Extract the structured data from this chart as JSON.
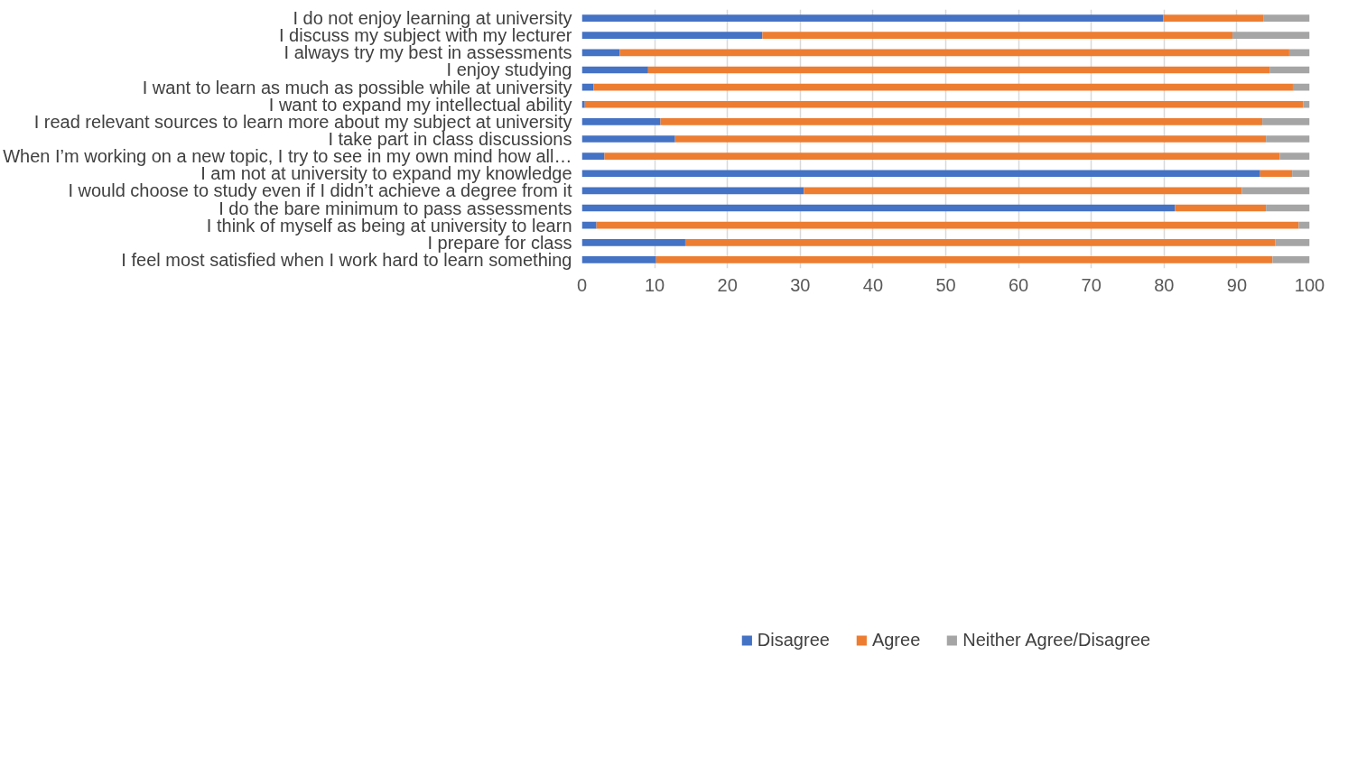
{
  "chart_data": {
    "type": "bar",
    "orientation": "horizontal",
    "stacked": true,
    "categories": [
      "I do not enjoy learning at university",
      "I discuss my subject with my lecturer",
      "I always try my best in assessments",
      "I enjoy studying",
      "I want to learn as much as possible while at university",
      "I want to expand my intellectual ability",
      "I read relevant sources to learn more about my subject at university",
      "I take part in class discussions",
      "When I’m working on a new topic, I try to see in my own mind how all…",
      "I am not at university to expand my knowledge",
      "I would choose to study even if I didn’t achieve a degree from it",
      "I do the bare minimum to pass assessments",
      "I think of myself as being at university to learn",
      "I prepare for class",
      "I feel most satisfied when I work hard to learn something"
    ],
    "series": [
      {
        "name": "Disagree",
        "color": "#4472c4",
        "values": [
          79.9,
          24.8,
          5.2,
          9.1,
          1.6,
          0.4,
          10.8,
          12.8,
          3.1,
          93.2,
          30.5,
          81.5,
          2.0,
          14.2,
          10.2
        ]
      },
      {
        "name": "Agree",
        "color": "#ed7d31",
        "values": [
          13.8,
          64.6,
          92.0,
          85.4,
          96.1,
          98.7,
          82.7,
          81.2,
          92.8,
          4.4,
          60.2,
          12.5,
          96.5,
          81.1,
          84.7
        ]
      },
      {
        "name": "Neither Agree/Disagree",
        "color": "#a5a5a5",
        "values": [
          6.3,
          10.6,
          2.8,
          5.5,
          2.3,
          0.9,
          6.5,
          6.0,
          4.1,
          2.4,
          9.3,
          6.0,
          1.5,
          4.7,
          5.1
        ]
      }
    ],
    "xlim": [
      0,
      100
    ],
    "xticks": [
      0,
      10,
      20,
      30,
      40,
      50,
      60,
      70,
      80,
      90,
      100
    ],
    "grid": "x",
    "legend": "bottom"
  }
}
